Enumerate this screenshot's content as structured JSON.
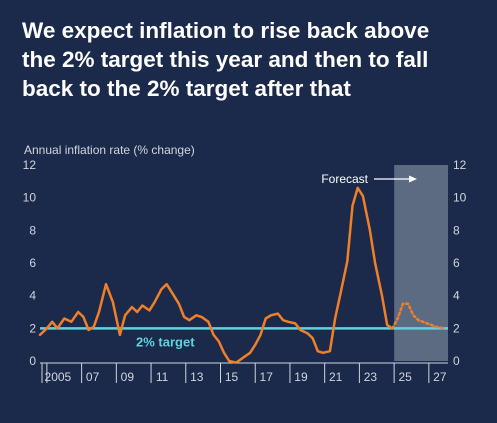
{
  "headline": {
    "line1": "We expect inflation to rise back above",
    "line2": "the 2% target this year and then to fall",
    "line3": "back to the 2% target after that"
  },
  "colors": {
    "background": "#1b2a4a",
    "actual_line": "#f07f2a",
    "target_line": "#5dd3e0",
    "forecast_shade": "#5c6b82",
    "axis_text": "#d0d5de"
  },
  "chart_data": {
    "type": "line",
    "ylabel": "Annual inflation rate (% change)",
    "ylim": [
      0,
      12
    ],
    "y_ticks": [
      "0",
      "2",
      "4",
      "6",
      "8",
      "10",
      "12"
    ],
    "xlim": [
      2004.2,
      2027.7
    ],
    "x_ticks": [
      {
        "value": 2005,
        "label": "2005"
      },
      {
        "value": 2007,
        "label": "07"
      },
      {
        "value": 2009,
        "label": "09"
      },
      {
        "value": 2011,
        "label": "11"
      },
      {
        "value": 2013,
        "label": "13"
      },
      {
        "value": 2015,
        "label": "15"
      },
      {
        "value": 2017,
        "label": "17"
      },
      {
        "value": 2019,
        "label": "19"
      },
      {
        "value": 2021,
        "label": "21"
      },
      {
        "value": 2023,
        "label": "23"
      },
      {
        "value": 2025,
        "label": "25"
      },
      {
        "value": 2027,
        "label": "27"
      }
    ],
    "grid": false,
    "target": {
      "value": 2,
      "label": "2% target"
    },
    "forecast": {
      "start": 2024.6,
      "label": "Forecast"
    },
    "series": [
      {
        "style": "solid",
        "x": [
          2004.2,
          2004.6,
          2004.9,
          2005.2,
          2005.6,
          2006.0,
          2006.4,
          2006.7,
          2007.0,
          2007.3,
          2007.6,
          2008.0,
          2008.4,
          2008.8,
          2009.1,
          2009.5,
          2009.8,
          2010.1,
          2010.5,
          2010.8,
          2011.2,
          2011.5,
          2011.8,
          2012.2,
          2012.5,
          2012.8,
          2013.2,
          2013.5,
          2013.9,
          2014.2,
          2014.5,
          2014.8,
          2015.1,
          2015.5,
          2015.9,
          2016.3,
          2016.6,
          2016.9,
          2017.2,
          2017.5,
          2017.9,
          2018.2,
          2018.5,
          2018.9,
          2019.2,
          2019.6,
          2019.9,
          2020.2,
          2020.5,
          2020.9,
          2021.2,
          2021.5,
          2021.9,
          2022.2,
          2022.5,
          2022.8,
          2023.2,
          2023.5,
          2023.9,
          2024.2,
          2024.5
        ],
        "values": [
          1.6,
          2.0,
          2.4,
          2.0,
          2.6,
          2.4,
          3.0,
          2.7,
          1.9,
          2.1,
          3.0,
          4.7,
          3.6,
          1.6,
          2.8,
          3.3,
          3.0,
          3.4,
          3.1,
          3.6,
          4.4,
          4.7,
          4.2,
          3.5,
          2.7,
          2.5,
          2.8,
          2.7,
          2.4,
          1.6,
          1.2,
          0.5,
          0.0,
          -0.1,
          0.2,
          0.5,
          1.0,
          1.6,
          2.6,
          2.8,
          2.9,
          2.5,
          2.4,
          2.3,
          1.9,
          1.7,
          1.4,
          0.6,
          0.5,
          0.6,
          2.6,
          4.1,
          6.1,
          9.5,
          10.6,
          10.1,
          8.0,
          6.0,
          4.0,
          2.2,
          2.0
        ]
      },
      {
        "style": "dotted",
        "x": [
          2024.5,
          2024.8,
          2025.1,
          2025.4,
          2025.7,
          2026.0,
          2026.5,
          2027.0,
          2027.5
        ],
        "values": [
          2.0,
          2.6,
          3.5,
          3.5,
          2.8,
          2.5,
          2.3,
          2.1,
          2.0
        ]
      }
    ]
  }
}
